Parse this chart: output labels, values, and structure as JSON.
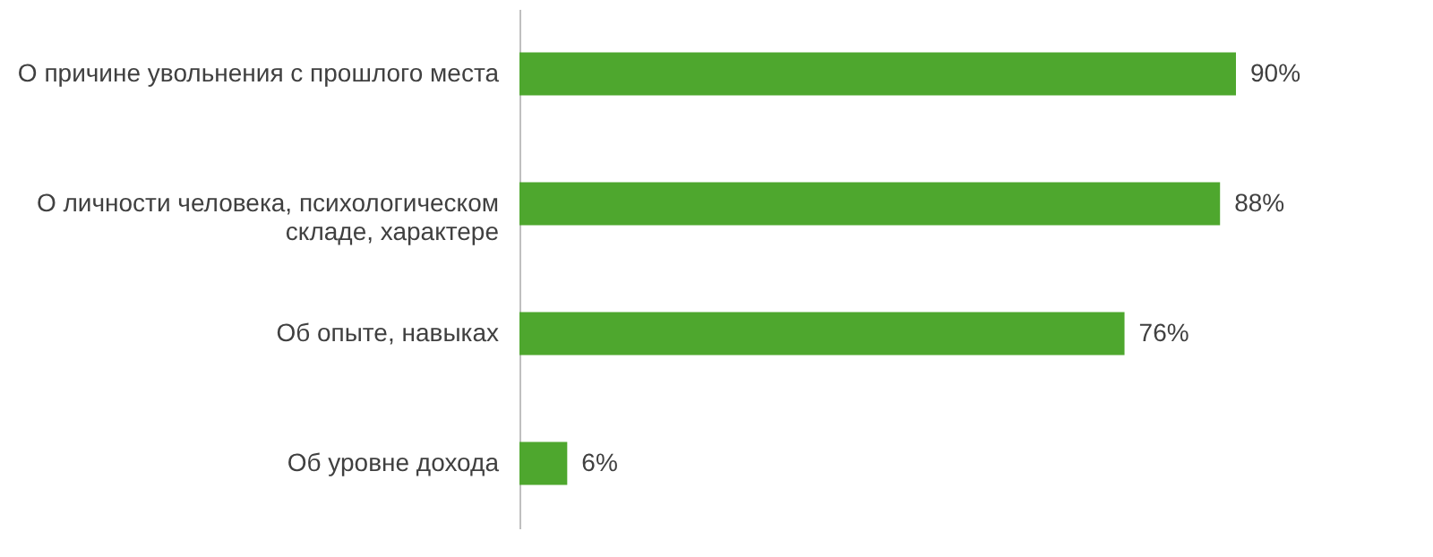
{
  "chart_data": {
    "type": "bar",
    "orientation": "horizontal",
    "categories": [
      "О причине  увольнения с прошлого места",
      "О личности человека, психологическом складе, характере",
      "Об опыте, навыках",
      "Об уровне дохода"
    ],
    "values": [
      90,
      88,
      76,
      6
    ],
    "color": "#4ea72e",
    "value_labels": [
      "90%",
      "88%",
      "76%",
      "6%"
    ]
  }
}
